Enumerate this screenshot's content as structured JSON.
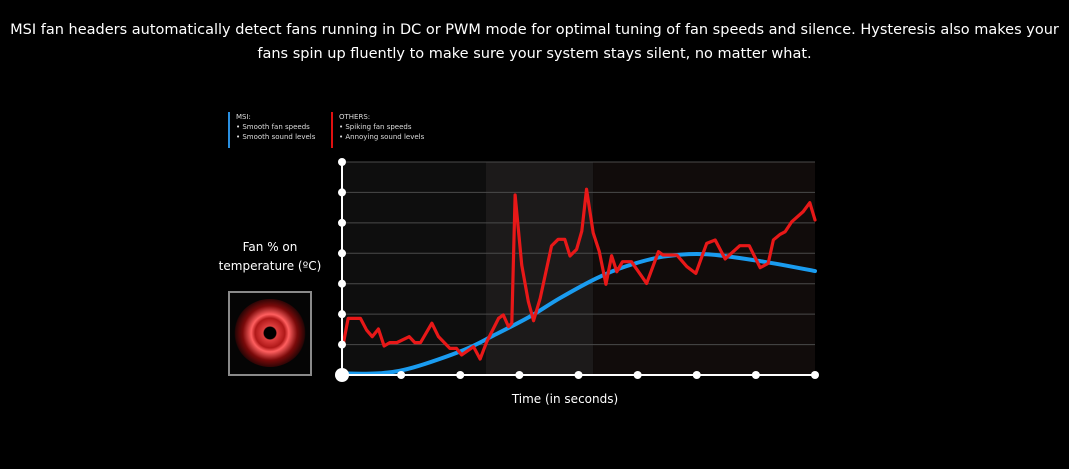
{
  "intro": {
    "line1": "MSI fan headers automatically detect fans running in DC or PWM mode for optimal tuning of fan speeds and silence. Hysteresis also makes your",
    "line2": "fans spin up fluently to make sure your system stays silent, no matter what."
  },
  "chart_data": {
    "type": "line",
    "xlabel": "Time (in seconds)",
    "ylabel_line1": "Fan % on",
    "ylabel_line2": "temperature (ºC)",
    "xlim": [
      0,
      100
    ],
    "ylim": [
      0,
      100
    ],
    "x_ticks": 8,
    "y_ticks": 7,
    "grid": true,
    "highlight_band": [
      30.4,
      53.1
    ],
    "legend": {
      "placement": "top-left",
      "msi": {
        "title": "MSI:",
        "items": [
          "Smooth fan speeds",
          "Smooth sound levels"
        ],
        "color": "#1a9cf0"
      },
      "others": {
        "title": "OTHERS:",
        "items": [
          "Spiking fan speeds",
          "Annoying sound levels"
        ],
        "color": "#e81818"
      }
    },
    "series": [
      {
        "name": "MSI",
        "color": "#1a9cf0",
        "x": [
          0,
          8,
          15,
          25.7,
          32,
          39.7,
          46,
          53.8,
          60,
          68,
          77.1,
          89.1,
          100
        ],
        "y": [
          0.8,
          0.8,
          3.5,
          11.7,
          18.5,
          27.4,
          36,
          45.4,
          51,
          55.6,
          56.7,
          53.2,
          48.8
        ]
      },
      {
        "name": "OTHERS",
        "color": "#e81818",
        "x": [
          0.3,
          1.3,
          3.9,
          5.2,
          6.4,
          7.7,
          8.9,
          10.1,
          11.6,
          14.2,
          15.4,
          16.6,
          19.0,
          20.4,
          22.8,
          24.2,
          25.3,
          27.8,
          29.2,
          30.6,
          33.1,
          34.1,
          35.2,
          35.9,
          36.6,
          38.0,
          39.4,
          40.5,
          41.9,
          44.3,
          45.7,
          47.1,
          48.2,
          49.6,
          50.7,
          51.7,
          53.1,
          54.4,
          55.8,
          57.0,
          58.1,
          59.3,
          61.2,
          63.4,
          64.4,
          66.9,
          67.9,
          70.8,
          72.9,
          74.8,
          77.1,
          78.9,
          81.0,
          84.1,
          86.1,
          88.4,
          90.1,
          91.2,
          92.6,
          93.7,
          95.1,
          97.5,
          98.9,
          100
        ],
        "y": [
          14.9,
          26.6,
          26.6,
          21.1,
          18.0,
          21.6,
          13.6,
          15.2,
          15.2,
          18.0,
          15.2,
          15.2,
          24.3,
          18.0,
          12.5,
          12.5,
          9.4,
          13.3,
          7.5,
          15.6,
          26.6,
          28.2,
          22.7,
          24.3,
          84.5,
          51.6,
          34.4,
          25.5,
          36.0,
          60.6,
          63.7,
          63.7,
          55.9,
          59.0,
          67.6,
          87.2,
          66.8,
          57.9,
          42.6,
          56.0,
          48.5,
          53.2,
          53.2,
          46.2,
          43.0,
          57.9,
          56.3,
          56.3,
          50.9,
          47.7,
          61.8,
          63.4,
          54.5,
          60.7,
          60.7,
          50.4,
          52.4,
          63.4,
          66.0,
          67.3,
          72.0,
          76.7,
          80.9,
          72.8
        ]
      }
    ]
  }
}
